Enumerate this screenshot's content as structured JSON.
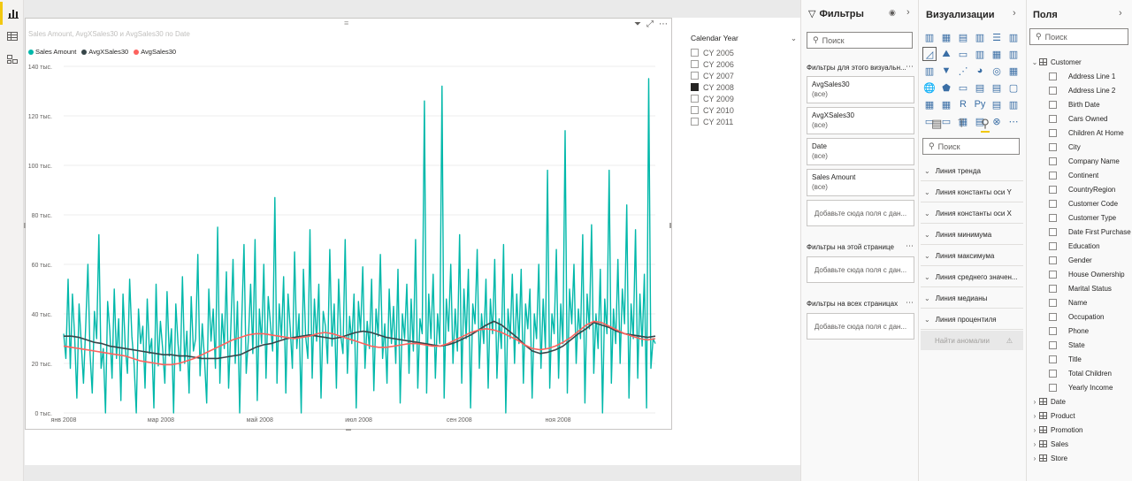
{
  "visual": {
    "title": "Sales Amount, AvgXSales30 и AvgSales30 по Date",
    "legend": [
      {
        "name": "Sales Amount",
        "color": "#01b8aa"
      },
      {
        "name": "AvgXSales30",
        "color": "#374649"
      },
      {
        "name": "AvgSales30",
        "color": "#fd625e"
      }
    ],
    "header_icons": [
      "filter-icon",
      "focus-mode-icon",
      "more-options-icon"
    ]
  },
  "chart_data": {
    "type": "line",
    "x_ticks": [
      "янв 2008",
      "мар 2008",
      "май 2008",
      "июл 2008",
      "сен 2008",
      "ноя 2008"
    ],
    "y_ticks": [
      "0 тыс.",
      "20 тыс.",
      "40 тыс.",
      "60 тыс.",
      "80 тыс.",
      "100 тыс.",
      "120 тыс.",
      "140 тыс."
    ],
    "ylim": [
      0,
      140000
    ],
    "x_start": "2008-01-01",
    "x_end": "2008-12-31",
    "series": [
      {
        "name": "Sales Amount",
        "color": "#01b8aa",
        "values": [
          32000,
          22000,
          54000,
          18000,
          48000,
          31000,
          6000,
          44000,
          28000,
          12000,
          35000,
          60000,
          24000,
          8000,
          41000,
          30000,
          72000,
          18000,
          26000,
          0,
          45000,
          33000,
          14000,
          50000,
          22000,
          38000,
          5000,
          48000,
          27000,
          16000,
          54000,
          31000,
          20000,
          0,
          42000,
          28000,
          35000,
          10000,
          46000,
          24000,
          30000,
          2000,
          52000,
          19000,
          37000,
          26000,
          12000,
          49000,
          23000,
          34000,
          0,
          44000,
          28000,
          17000,
          55000,
          20000,
          33000,
          8000,
          47000,
          25000,
          30000,
          64000,
          15000,
          36000,
          22000,
          4000,
          50000,
          29000,
          42000,
          18000,
          75000,
          12000,
          40000,
          26000,
          57000,
          10000,
          34000,
          62000,
          20000,
          45000,
          0,
          38000,
          68000,
          16000,
          30000,
          52000,
          24000,
          70000,
          5000,
          42000,
          28000,
          60000,
          14000,
          47000,
          36000,
          25000,
          87000,
          12000,
          44000,
          30000,
          55000,
          8000,
          48000,
          34000,
          18000,
          65000,
          26000,
          40000,
          0,
          58000,
          31000,
          22000,
          74000,
          14000,
          46000,
          29000,
          52000,
          6000,
          41000,
          35000,
          20000,
          66000,
          27000,
          44000,
          10000,
          54000,
          31000,
          24000,
          70000,
          16000,
          39000,
          28000,
          48000,
          2000,
          45000,
          33000,
          59000,
          18000,
          37000,
          26000,
          54000,
          9000,
          42000,
          31000,
          64000,
          22000,
          36000,
          12000,
          50000,
          28000,
          43000,
          20000,
          58000,
          4000,
          40000,
          30000,
          52000,
          16000,
          46000,
          25000,
          70000,
          10000,
          38000,
          32000,
          126000,
          8000,
          48000,
          30000,
          56000,
          14000,
          40000,
          28000,
          132000,
          6000,
          46000,
          33000,
          60000,
          20000,
          42000,
          25000,
          72000,
          12000,
          50000,
          30000,
          58000,
          2000,
          44000,
          36000,
          66000,
          18000,
          40000,
          28000,
          54000,
          10000,
          46000,
          32000,
          62000,
          14000,
          38000,
          26000,
          68000,
          0,
          42000,
          30000,
          56000,
          20000,
          48000,
          28000,
          58000,
          12000,
          44000,
          34000,
          50000,
          6000,
          40000,
          30000,
          60000,
          18000,
          46000,
          26000,
          98000,
          10000,
          40000,
          32000,
          66000,
          14000,
          44000,
          28000,
          114000,
          8000,
          50000,
          36000,
          60000,
          20000,
          42000,
          30000,
          72000,
          4000,
          48000,
          34000,
          76000,
          16000,
          40000,
          26000,
          58000,
          0,
          46000,
          32000,
          98000,
          12000,
          42000,
          28000,
          62000,
          20000,
          50000,
          36000,
          84000,
          6000,
          44000,
          30000,
          74000,
          14000,
          48000,
          27000,
          56000,
          2000,
          135000,
          18000,
          30000,
          28000
        ]
      },
      {
        "name": "AvgXSales30",
        "color": "#374649",
        "values": [
          31000,
          31000,
          30500,
          29500,
          28500,
          28000,
          27000,
          26500,
          26000,
          25500,
          25000,
          24500,
          24000,
          23500,
          23500,
          23000,
          23000,
          22500,
          22000,
          22000,
          22000,
          22500,
          23000,
          23500,
          25000,
          26500,
          27500,
          28000,
          29000,
          30000,
          30500,
          31000,
          31500,
          31000,
          30500,
          30000,
          30500,
          31500,
          32500,
          33000,
          32500,
          31500,
          30500,
          30000,
          29500,
          29000,
          28500,
          28000,
          27500,
          27000,
          27500,
          28500,
          30000,
          31500,
          33500,
          35500,
          37000,
          35500,
          33000,
          30500,
          27500,
          25000,
          24000,
          24500,
          25500,
          27000,
          29500,
          32000,
          34000,
          36500,
          35500,
          34500,
          33000,
          32000,
          31500,
          31000,
          30500,
          31000
        ]
      },
      {
        "name": "AvgSales30",
        "color": "#fd625e",
        "values": [
          27000,
          26500,
          26000,
          25500,
          25000,
          24500,
          24000,
          23500,
          23000,
          22000,
          21000,
          20500,
          20000,
          19500,
          19500,
          20000,
          21000,
          22000,
          23500,
          25000,
          26500,
          28000,
          29500,
          30500,
          31500,
          32000,
          32000,
          31500,
          31000,
          30500,
          30000,
          30500,
          31000,
          32000,
          32500,
          32000,
          31000,
          30000,
          29000,
          28000,
          27000,
          26500,
          26500,
          27000,
          27500,
          28000,
          28000,
          27500,
          27000,
          27000,
          28000,
          29500,
          31000,
          32500,
          33500,
          34000,
          33500,
          32500,
          31000,
          29500,
          27500,
          26000,
          25500,
          26000,
          27000,
          28500,
          30500,
          33000,
          35500,
          37000,
          36500,
          35000,
          33500,
          32000,
          31000,
          30000,
          29500,
          30000
        ]
      }
    ]
  },
  "slicer": {
    "title": "Calendar Year",
    "items": [
      {
        "label": "CY 2005",
        "checked": false
      },
      {
        "label": "CY 2006",
        "checked": false
      },
      {
        "label": "CY 2007",
        "checked": false
      },
      {
        "label": "CY 2008",
        "checked": true
      },
      {
        "label": "CY 2009",
        "checked": false
      },
      {
        "label": "CY 2010",
        "checked": false
      },
      {
        "label": "CY 2011",
        "checked": false
      }
    ]
  },
  "filters": {
    "title": "Фильтры",
    "search_placeholder": "Поиск",
    "visual_section": "Фильтры для этого визуальн...",
    "page_section": "Фильтры на этой странице",
    "all_section": "Фильтры на всех страницах",
    "cards": [
      {
        "name": "AvgSales30",
        "value": "(все)"
      },
      {
        "name": "AvgXSales30",
        "value": "(все)"
      },
      {
        "name": "Date",
        "value": "(все)"
      },
      {
        "name": "Sales Amount",
        "value": "(все)"
      }
    ],
    "dropzone": "Добавьте сюда поля с дан..."
  },
  "visualizations": {
    "title": "Визуализации",
    "search_placeholder": "Поиск",
    "analytics": [
      "Линия тренда",
      "Линия константы оси Y",
      "Линия константы оси X",
      "Линия минимума",
      "Линия максимума",
      "Линия среднего значен...",
      "Линия медианы",
      "Линия процентиля"
    ],
    "anomaly": "Найти аномалии"
  },
  "fields": {
    "title": "Поля",
    "search_placeholder": "Поиск",
    "customer_table": "Customer",
    "customer_fields": [
      "Address Line 1",
      "Address Line 2",
      "Birth Date",
      "Cars Owned",
      "Children At Home",
      "City",
      "Company Name",
      "Continent",
      "CountryRegion",
      "Customer Code",
      "Customer Type",
      "Date First Purchase",
      "Education",
      "Gender",
      "House Ownership",
      "Marital Status",
      "Name",
      "Occupation",
      "Phone",
      "State",
      "Title",
      "Total Children",
      "Yearly Income"
    ],
    "other_tables": [
      "Date",
      "Product",
      "Promotion",
      "Sales",
      "Store"
    ]
  }
}
